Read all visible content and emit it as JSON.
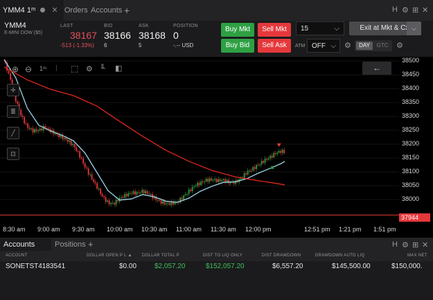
{
  "top_tabs": {
    "symbol_tab": "YMM4 1ᵐ",
    "orders": "Orders",
    "accounts": "Accounts",
    "add": "+",
    "icons": [
      "H",
      "⚙",
      "⊞",
      "✕"
    ]
  },
  "quote": {
    "symbol": "YMM4",
    "description": "E-MINI DOW ($5)",
    "last_label": "LAST",
    "last": "38167",
    "last_change": "-513 (-1.33%)",
    "bid_label": "BID",
    "bid": "38166",
    "bid_size": "6",
    "ask_label": "ASK",
    "ask": "38168",
    "ask_size": "5",
    "position_label": "POSITION",
    "position": "0",
    "position_pl": "-.-- USD"
  },
  "trade_buttons": {
    "buy_mkt": "Buy Mkt",
    "sell_mkt": "Sell Mkt",
    "buy_bid": "Buy Bid",
    "sell_ask": "Sell Ask",
    "quantity": "15",
    "exit": "Exit at Mkt & Cxl",
    "atm_label": "ATM",
    "atm_value": "OFF",
    "day": "DAY",
    "gtc": "GTC"
  },
  "chart_toolbar": {
    "interval": "1ᵐ",
    "back": "←"
  },
  "chart_data": {
    "type": "line",
    "y_ticks": [
      "38500",
      "38450",
      "38400",
      "38350",
      "38300",
      "38250",
      "38200",
      "38150",
      "38100",
      "38050",
      "38000"
    ],
    "ylim": [
      37950,
      38520
    ],
    "x_ticks": [
      "8:30 am",
      "9:00 am",
      "9:30 am",
      "10:00 am",
      "10:30 am",
      "11:00 am",
      "11:30 am",
      "12:00 pm",
      "12:51 pm",
      "1:21 pm",
      "1:51 pm"
    ],
    "x_minutes": [
      0,
      30,
      60,
      90,
      120,
      150,
      180,
      210,
      261,
      291,
      321
    ],
    "reference_line": "37944",
    "series": [
      {
        "color": "#ffffff",
        "values": [
          [
            0,
            38500
          ],
          [
            5,
            38440
          ],
          [
            10,
            38360
          ],
          [
            15,
            38300
          ],
          [
            20,
            38262
          ],
          [
            25,
            38248
          ],
          [
            30,
            38250
          ],
          [
            35,
            38262
          ],
          [
            40,
            38248
          ],
          [
            45,
            38235
          ],
          [
            50,
            38225
          ],
          [
            55,
            38212
          ],
          [
            60,
            38195
          ],
          [
            65,
            38162
          ],
          [
            70,
            38118
          ],
          [
            75,
            38082
          ],
          [
            80,
            38048
          ],
          [
            85,
            38012
          ],
          [
            90,
            37988
          ],
          [
            95,
            37985
          ],
          [
            100,
            38004
          ],
          [
            105,
            38015
          ],
          [
            110,
            38025
          ],
          [
            115,
            38023
          ],
          [
            120,
            38030
          ],
          [
            125,
            38022
          ],
          [
            130,
            38005
          ],
          [
            135,
            37992
          ],
          [
            140,
            37985
          ],
          [
            145,
            37986
          ],
          [
            150,
            37990
          ],
          [
            155,
            38010
          ],
          [
            160,
            38030
          ],
          [
            165,
            38050
          ],
          [
            170,
            38060
          ],
          [
            175,
            38070
          ],
          [
            180,
            38072
          ],
          [
            185,
            38068
          ],
          [
            190,
            38070
          ],
          [
            195,
            38062
          ],
          [
            200,
            38062
          ],
          [
            205,
            38075
          ],
          [
            210,
            38098
          ],
          [
            215,
            38110
          ],
          [
            220,
            38125
          ],
          [
            225,
            38140
          ],
          [
            230,
            38152
          ],
          [
            235,
            38167
          ],
          [
            240,
            38175
          ],
          [
            243,
            38170
          ]
        ]
      },
      {
        "color": "#9fd6ea",
        "values": [
          [
            0,
            38505
          ],
          [
            10,
            38440
          ],
          [
            20,
            38330
          ],
          [
            30,
            38268
          ],
          [
            40,
            38248
          ],
          [
            50,
            38232
          ],
          [
            60,
            38212
          ],
          [
            70,
            38168
          ],
          [
            80,
            38100
          ],
          [
            90,
            38032
          ],
          [
            100,
            37998
          ],
          [
            110,
            38002
          ],
          [
            120,
            38018
          ],
          [
            130,
            38010
          ],
          [
            140,
            37994
          ],
          [
            150,
            37990
          ],
          [
            160,
            38005
          ],
          [
            170,
            38030
          ],
          [
            180,
            38048
          ],
          [
            190,
            38062
          ],
          [
            200,
            38064
          ],
          [
            210,
            38075
          ],
          [
            220,
            38095
          ],
          [
            230,
            38112
          ],
          [
            240,
            38130
          ],
          [
            243,
            38138
          ]
        ]
      },
      {
        "color": "#e0271f",
        "values": [
          [
            0,
            38478
          ],
          [
            20,
            38432
          ],
          [
            40,
            38398
          ],
          [
            60,
            38375
          ],
          [
            80,
            38338
          ],
          [
            100,
            38282
          ],
          [
            120,
            38228
          ],
          [
            140,
            38178
          ],
          [
            160,
            38138
          ],
          [
            180,
            38105
          ],
          [
            200,
            38082
          ],
          [
            220,
            38068
          ],
          [
            230,
            38062
          ],
          [
            243,
            38053
          ]
        ]
      }
    ]
  },
  "bottom_panel": {
    "tab_accounts": "Accounts",
    "tab_positions": "Positions",
    "add": "+",
    "columns": [
      "ACCOUNT",
      "DOLLAR OPEN P L ▲",
      "DOLLAR TOTAL P",
      "DIST TO LIQ ONLY",
      "DIST DRAWDOWN",
      "DRAWDOWN AUTO LIQ",
      "MAX NET"
    ],
    "rows": [
      {
        "account": "SONETST4183541",
        "open_pl": "$0.00",
        "total_pl": "$2,057.20",
        "dist_liq": "$152,057.20",
        "dist_dd": "$6,557.20",
        "dd_auto_liq": "$145,500.00",
        "max_net": "$150,000."
      }
    ]
  }
}
